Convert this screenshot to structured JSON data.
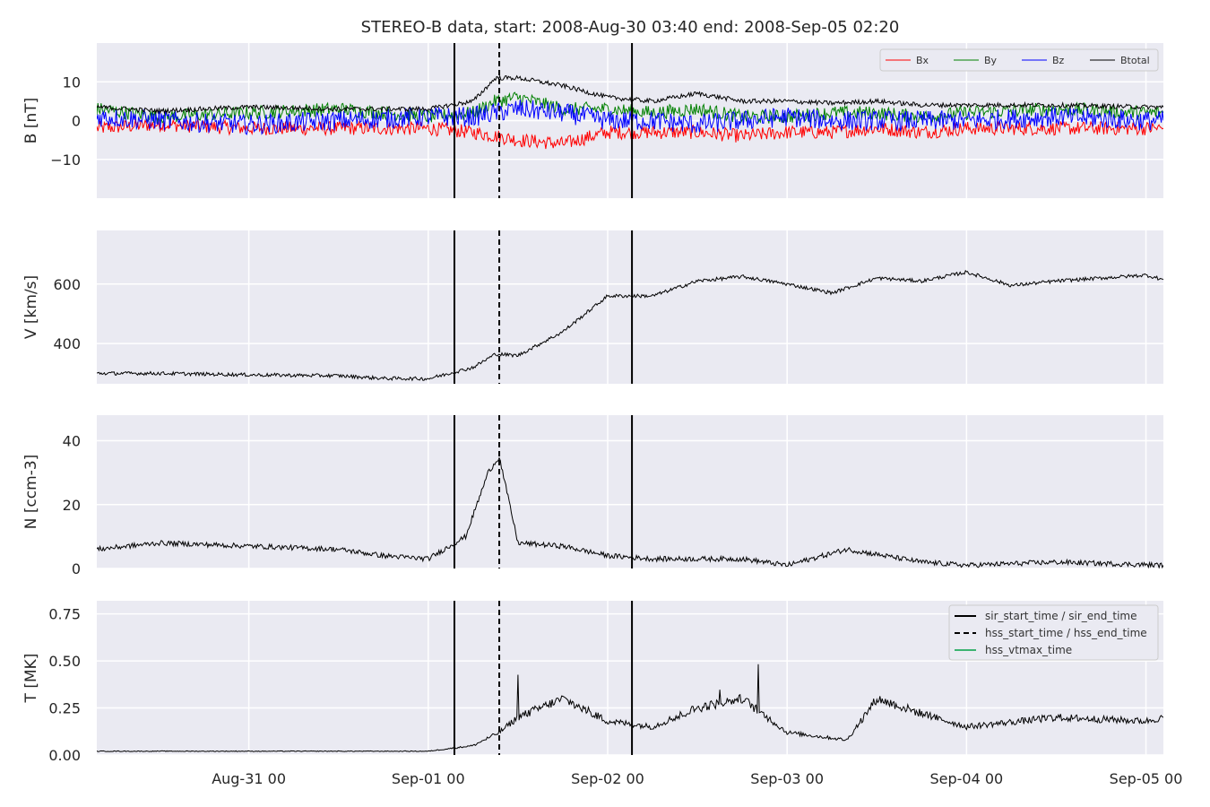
{
  "figure_title": "STEREO-B data, start: 2008-Aug-30 03:40  end: 2008-Sep-05 02:20",
  "chart_data": [
    {
      "type": "line",
      "panel": "magnetic_field",
      "ylabel": "B [nT]",
      "ylim": [
        -20,
        20
      ],
      "yticks": [
        10,
        0,
        -10
      ],
      "ytick_labels": [
        "10",
        "0",
        "−10"
      ],
      "grid": true,
      "legend": {
        "placement": "top-right",
        "entries": [
          "Bx",
          "By",
          "Bz",
          "Btotal"
        ]
      },
      "x": [
        "2008-08-30 03:40",
        "2008-08-30 12:00",
        "2008-08-31 00:00",
        "2008-08-31 12:00",
        "2008-09-01 00:00",
        "2008-09-01 06:00",
        "2008-09-01 09:00",
        "2008-09-01 12:00",
        "2008-09-01 18:00",
        "2008-09-02 00:00",
        "2008-09-02 06:00",
        "2008-09-02 12:00",
        "2008-09-02 18:00",
        "2008-09-03 00:00",
        "2008-09-03 06:00",
        "2008-09-03 12:00",
        "2008-09-03 18:00",
        "2008-09-04 00:00",
        "2008-09-04 12:00",
        "2008-09-05 00:00",
        "2008-09-05 02:20"
      ],
      "series": [
        {
          "name": "Bx",
          "color": "#ff0000",
          "values": [
            -2,
            -1,
            -2,
            -2,
            -2,
            -3,
            -4,
            -5,
            -6,
            -3,
            -3,
            -3,
            -4,
            -3,
            -3,
            -2,
            -3,
            -2,
            -2,
            -2,
            -2
          ]
        },
        {
          "name": "By",
          "color": "#008000",
          "values": [
            3,
            1,
            2,
            3,
            1,
            2,
            5,
            6,
            3,
            3,
            2,
            3,
            1,
            1,
            2,
            2,
            1,
            2,
            3,
            2,
            2
          ]
        },
        {
          "name": "Bz",
          "color": "#0000ff",
          "values": [
            1,
            0,
            -1,
            0,
            1,
            1,
            2,
            3,
            2,
            0,
            0,
            -1,
            0,
            1,
            0,
            0,
            0,
            0,
            1,
            0,
            0
          ]
        },
        {
          "name": "Btotal",
          "color": "#000000",
          "values": [
            3.5,
            2.5,
            3.5,
            3,
            3,
            5,
            11,
            11,
            9,
            6,
            5,
            7,
            5,
            5,
            4.5,
            5,
            4,
            4,
            4,
            3.5,
            3.5
          ]
        }
      ]
    },
    {
      "type": "line",
      "panel": "velocity",
      "ylabel": "V [km/s]",
      "ylim": [
        265,
        780
      ],
      "yticks": [
        400,
        600
      ],
      "ytick_labels": [
        "400",
        "600"
      ],
      "grid": true,
      "x": [
        "2008-08-30 03:40",
        "2008-08-30 12:00",
        "2008-08-31 00:00",
        "2008-08-31 12:00",
        "2008-08-31 18:00",
        "2008-09-01 00:00",
        "2008-09-01 06:00",
        "2008-09-01 09:00",
        "2008-09-01 12:00",
        "2008-09-01 18:00",
        "2008-09-02 00:00",
        "2008-09-02 06:00",
        "2008-09-02 12:00",
        "2008-09-02 18:00",
        "2008-09-03 00:00",
        "2008-09-03 06:00",
        "2008-09-03 12:00",
        "2008-09-03 18:00",
        "2008-09-04 00:00",
        "2008-09-04 06:00",
        "2008-09-04 12:00",
        "2008-09-05 00:00",
        "2008-09-05 02:20"
      ],
      "series": [
        {
          "name": "V",
          "color": "#000000",
          "values": [
            300,
            300,
            295,
            292,
            283,
            282,
            320,
            365,
            360,
            440,
            560,
            560,
            610,
            625,
            600,
            570,
            620,
            610,
            640,
            595,
            610,
            630,
            615
          ]
        }
      ]
    },
    {
      "type": "line",
      "panel": "density",
      "ylabel": "N [ccm-3]",
      "ylim": [
        0,
        48
      ],
      "yticks": [
        0,
        20,
        40
      ],
      "ytick_labels": [
        "0",
        "20",
        "40"
      ],
      "grid": true,
      "x": [
        "2008-08-30 03:40",
        "2008-08-30 12:00",
        "2008-08-31 00:00",
        "2008-08-31 12:00",
        "2008-08-31 18:00",
        "2008-09-01 00:00",
        "2008-09-01 05:00",
        "2008-09-01 08:00",
        "2008-09-01 09:30",
        "2008-09-01 12:00",
        "2008-09-01 18:00",
        "2008-09-02 00:00",
        "2008-09-02 06:00",
        "2008-09-02 12:00",
        "2008-09-02 18:00",
        "2008-09-03 00:00",
        "2008-09-03 08:00",
        "2008-09-03 18:00",
        "2008-09-04 00:00",
        "2008-09-04 12:00",
        "2008-09-05 02:20"
      ],
      "series": [
        {
          "name": "N",
          "color": "#000000",
          "values": [
            6,
            8,
            7,
            6,
            4,
            3,
            10,
            30,
            35,
            8,
            7,
            4,
            3,
            3,
            3,
            1,
            6,
            2,
            1,
            2,
            1
          ]
        }
      ]
    },
    {
      "type": "line",
      "panel": "temperature",
      "ylabel": "T [MK]",
      "ylim": [
        0,
        0.82
      ],
      "yticks": [
        0,
        0.25,
        0.5,
        0.75
      ],
      "ytick_labels": [
        "0.00",
        "0.25",
        "0.50",
        "0.75"
      ],
      "grid": true,
      "legend": {
        "placement": "top-right",
        "entries": [
          "sir_start_time / sir_end_time",
          "hss_start_time / hss_end_time",
          "hss_vtmax_time"
        ]
      },
      "x": [
        "2008-08-30 03:40",
        "2008-08-31 00:00",
        "2008-09-01 00:00",
        "2008-09-01 06:00",
        "2008-09-01 09:30",
        "2008-09-01 12:00",
        "2008-09-01 18:00",
        "2008-09-02 00:00",
        "2008-09-02 06:00",
        "2008-09-02 12:00",
        "2008-09-02 18:00",
        "2008-09-03 00:00",
        "2008-09-03 08:00",
        "2008-09-03 12:00",
        "2008-09-03 18:00",
        "2008-09-04 00:00",
        "2008-09-04 12:00",
        "2008-09-05 00:00",
        "2008-09-05 02:20"
      ],
      "series": [
        {
          "name": "T",
          "color": "#000000",
          "values": [
            0.02,
            0.02,
            0.02,
            0.05,
            0.12,
            0.2,
            0.3,
            0.18,
            0.15,
            0.25,
            0.3,
            0.12,
            0.08,
            0.3,
            0.22,
            0.15,
            0.2,
            0.18,
            0.2
          ]
        }
      ]
    }
  ],
  "x_axis": {
    "range": [
      "2008-08-30 03:40",
      "2008-09-05 02:20"
    ],
    "tick_labels": [
      "Aug-31 00",
      "Sep-01 00",
      "Sep-02 00",
      "Sep-03 00",
      "Sep-04 00",
      "Sep-05 00"
    ],
    "tick_dates": [
      "2008-08-31 00:00",
      "2008-09-01 00:00",
      "2008-09-02 00:00",
      "2008-09-03 00:00",
      "2008-09-04 00:00",
      "2008-09-05 00:00"
    ]
  },
  "event_markers": [
    {
      "label": "sir_start_time / sir_end_time",
      "style": "solid",
      "color": "#000000",
      "times": [
        "2008-09-01 03:30",
        "2008-09-02 03:15"
      ]
    },
    {
      "label": "hss_start_time / hss_end_time",
      "style": "dashed",
      "color": "#000000",
      "times": [
        "2008-09-01 09:30"
      ]
    },
    {
      "label": "hss_vtmax_time",
      "style": "solid",
      "color": "#3cb371",
      "times": []
    }
  ],
  "colors": {
    "panel_bg": "#eaeaf2",
    "grid": "#ffffff"
  }
}
